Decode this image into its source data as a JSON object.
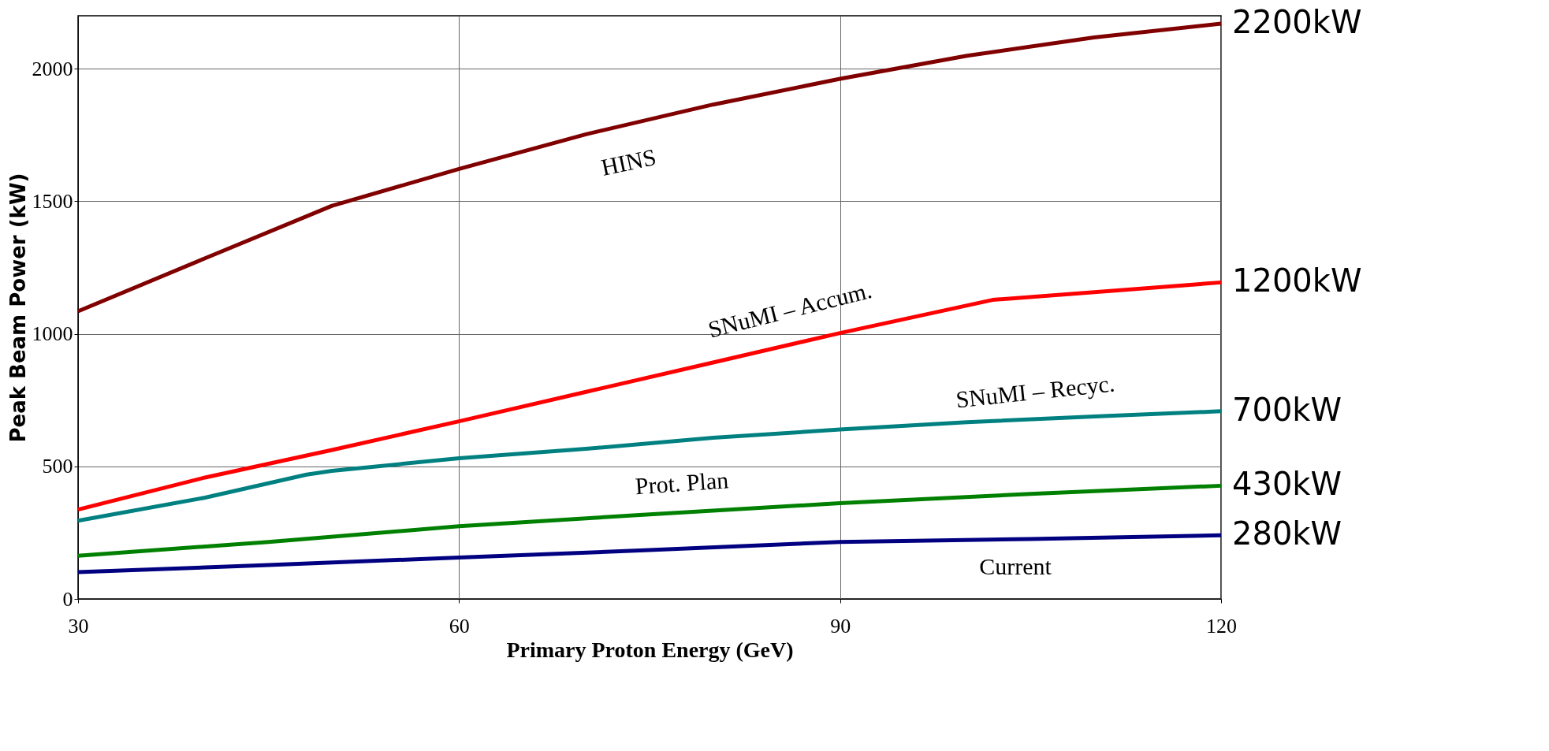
{
  "chart_data": {
    "type": "line",
    "xlabel": "Primary Proton Energy (GeV)",
    "ylabel": "Peak Beam Power (kW)",
    "xlim": [
      30,
      120
    ],
    "xticks": [
      30,
      60,
      90,
      120
    ],
    "ylim": [
      0,
      2200
    ],
    "yticks": [
      0,
      500,
      1000,
      1500,
      2000
    ],
    "grid": true,
    "line_style": "solid",
    "marker": "none",
    "series": [
      {
        "color": "#800000",
        "x": [
          30,
          40,
          50,
          60,
          70,
          80,
          90,
          100,
          110,
          120
        ],
        "values": [
          1085,
          1285,
          1483,
          1622,
          1753,
          1865,
          1962,
          2049,
          2118,
          2170
        ]
      },
      {
        "color": "#ff0000",
        "x": [
          30,
          40,
          50,
          60,
          70,
          80,
          90,
          102,
          120
        ],
        "values": [
          337,
          458,
          562,
          670,
          781,
          892,
          1003,
          1128,
          1194
        ]
      },
      {
        "color": "#008080",
        "x": [
          30,
          40,
          48,
          50,
          60,
          70,
          80,
          90,
          100,
          110,
          120
        ],
        "values": [
          295,
          382,
          469,
          483,
          531,
          566,
          608,
          639,
          667,
          688,
          708
        ]
      },
      {
        "color": "#008000",
        "x": [
          30,
          45,
          60,
          75,
          90,
          105,
          120
        ],
        "values": [
          163,
          215,
          274,
          319,
          361,
          396,
          427
        ]
      },
      {
        "color": "#000080",
        "x": [
          30,
          45,
          60,
          75,
          90,
          105,
          120
        ],
        "values": [
          101,
          128,
          156,
          184,
          215,
          226,
          240
        ]
      }
    ],
    "annotations": [
      "HINS",
      "SNuMI – Accum.",
      "SNuMI – Recyc.",
      "Prot. Plan",
      "Current",
      "2200kW",
      "1200kW",
      "700kW",
      "430kW",
      "280kW"
    ]
  }
}
